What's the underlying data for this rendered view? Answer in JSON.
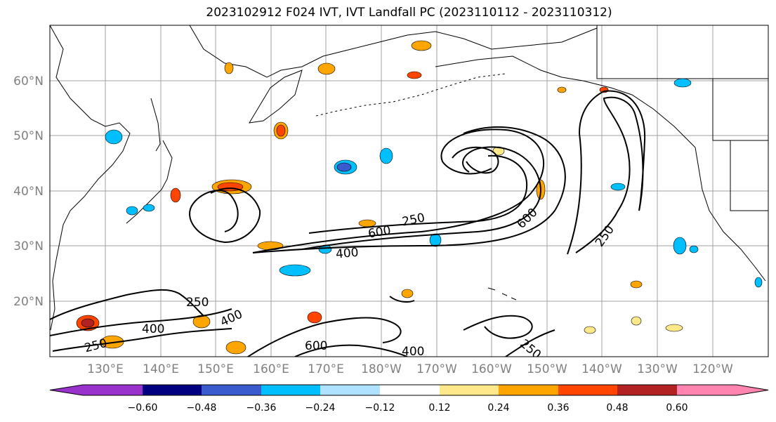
{
  "title": "2023102912 F024 IVT, IVT Landfall PC (2023110112 - 2023110312)",
  "map": {
    "lat_labels": [
      "60°N",
      "50°N",
      "40°N",
      "30°N",
      "20°N"
    ],
    "lon_labels": [
      "130°E",
      "140°E",
      "150°E",
      "160°E",
      "170°E",
      "180°W",
      "170°W",
      "160°W",
      "150°W",
      "140°W",
      "130°W",
      "120°W"
    ],
    "contour_labels": [
      "250",
      "600",
      "400",
      "600",
      "250",
      "250",
      "400",
      "400",
      "250",
      "600",
      "400",
      "250"
    ]
  },
  "colorbar": {
    "ticks": [
      "−0.60",
      "−0.48",
      "−0.36",
      "−0.24",
      "−0.12",
      "0.12",
      "0.24",
      "0.36",
      "0.48",
      "0.60"
    ],
    "colors": [
      "#9932cc",
      "#000080",
      "#3a5bcd",
      "#00bfff",
      "#afe2ff",
      "#ffffff",
      "#ffe88a",
      "#ffa500",
      "#ff4500",
      "#b22222",
      "#ff85b0"
    ]
  }
}
